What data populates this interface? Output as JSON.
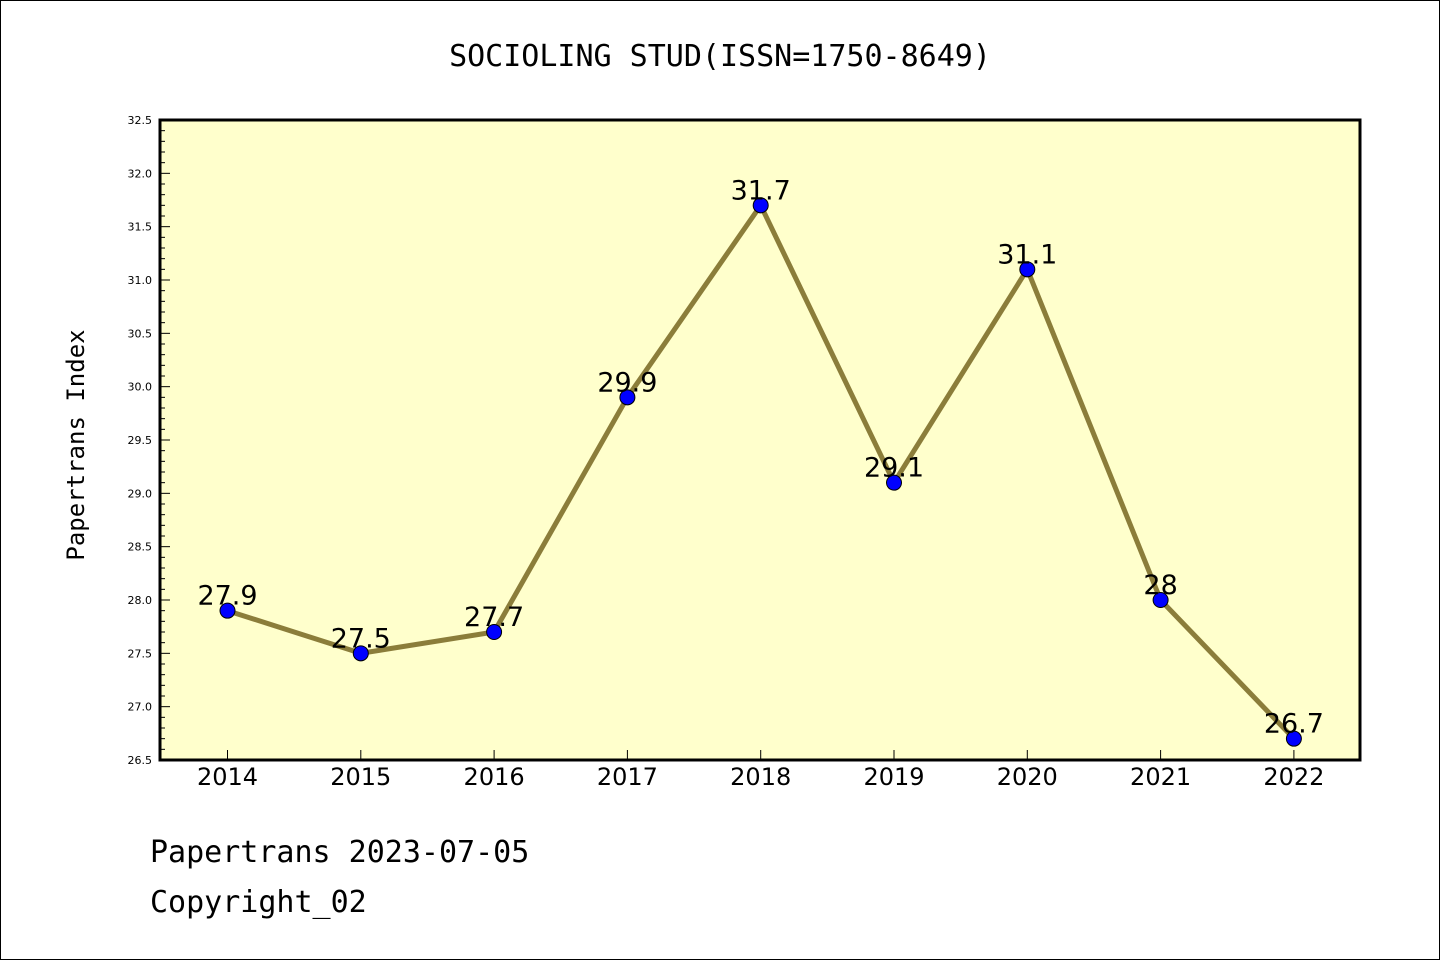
{
  "chart_data": {
    "type": "line",
    "title": "SOCIOLING STUD(ISSN=1750-8649)",
    "ylabel": "Papertrans Index",
    "xlabel": "",
    "categories": [
      "2014",
      "2015",
      "2016",
      "2017",
      "2018",
      "2019",
      "2020",
      "2021",
      "2022"
    ],
    "values": [
      27.9,
      27.5,
      27.7,
      29.9,
      31.7,
      29.1,
      31.1,
      28.0,
      26.7
    ],
    "data_labels": [
      "27.9",
      "27.5",
      "27.7",
      "29.9",
      "31.7",
      "29.1",
      "31.1",
      "28",
      "26.7"
    ],
    "ylim": [
      26.5,
      32.5
    ],
    "yticks": [
      "26.5",
      "27.0",
      "27.5",
      "28.0",
      "28.5",
      "29.0",
      "29.5",
      "30.0",
      "30.5",
      "31.0",
      "31.5",
      "32.0",
      "32.5"
    ],
    "grid": false,
    "colors": {
      "line": "#8b7d3a",
      "marker": "#0000ff",
      "plot_background": "#ffffcc"
    }
  },
  "footer": {
    "line1": "Papertrans 2023-07-05",
    "line2": "Copyright_02"
  }
}
